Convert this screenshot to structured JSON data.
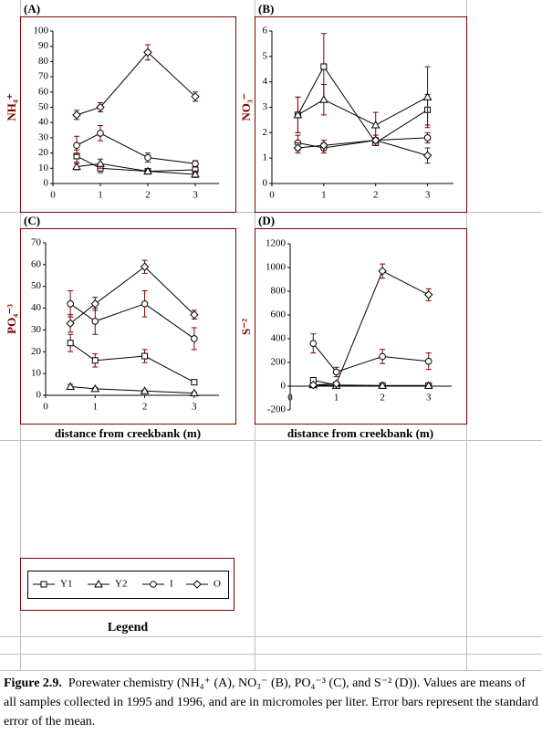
{
  "chart_data": [
    {
      "type": "line",
      "title": "(A)",
      "y_label": "NH₄⁺",
      "x": [
        0.5,
        1,
        2,
        3
      ],
      "xlim": [
        0,
        3.5
      ],
      "xticks": [
        0,
        1,
        2,
        3
      ],
      "ylim": [
        0,
        100
      ],
      "yticks": [
        0,
        10,
        20,
        30,
        40,
        50,
        60,
        70,
        80,
        90,
        100
      ],
      "grid": false,
      "error_color": "#800000",
      "series": [
        {
          "name": "Y1",
          "marker": "square",
          "color": "#000000",
          "values": [
            18,
            10,
            8,
            9
          ],
          "errors": [
            4,
            3,
            1,
            2
          ]
        },
        {
          "name": "Y2",
          "marker": "triangle",
          "color": "#000000",
          "values": [
            11,
            13,
            8,
            6
          ],
          "errors": [
            2,
            3,
            1,
            2
          ]
        },
        {
          "name": "I",
          "marker": "circle",
          "color": "#000000",
          "values": [
            25,
            33,
            17,
            13
          ],
          "errors": [
            6,
            5,
            3,
            2
          ]
        },
        {
          "name": "O",
          "marker": "diamond",
          "color": "#000000",
          "values": [
            45,
            50,
            86,
            57
          ],
          "errors": [
            3,
            3,
            5,
            3
          ]
        }
      ]
    },
    {
      "type": "line",
      "title": "(B)",
      "y_label": "NO₃⁻",
      "x": [
        0.5,
        1,
        2,
        3
      ],
      "xlim": [
        0,
        3.5
      ],
      "xticks": [
        0,
        1,
        2,
        3
      ],
      "ylim": [
        0,
        6
      ],
      "yticks": [
        0,
        1,
        2,
        3,
        4,
        5,
        6
      ],
      "grid": false,
      "error_color": "#800000",
      "series": [
        {
          "name": "Y1",
          "marker": "square",
          "color": "#000000",
          "values": [
            2.7,
            4.6,
            1.6,
            2.9
          ],
          "errors": [
            0.7,
            1.3,
            0.1,
            0.6
          ]
        },
        {
          "name": "Y2",
          "marker": "triangle",
          "color": "#000000",
          "values": [
            2.7,
            3.3,
            2.3,
            3.4
          ],
          "errors": [
            0.7,
            0.6,
            0.5,
            1.2
          ]
        },
        {
          "name": "I",
          "marker": "circle",
          "color": "#000000",
          "values": [
            1.6,
            1.4,
            1.7,
            1.8
          ],
          "errors": [
            0.3,
            0.2,
            0.1,
            0.2
          ]
        },
        {
          "name": "O",
          "marker": "diamond",
          "color": "#000000",
          "values": [
            1.4,
            1.5,
            1.7,
            1.1
          ],
          "errors": [
            0.2,
            0.2,
            0.2,
            0.3
          ]
        }
      ]
    },
    {
      "type": "line",
      "title": "(C)",
      "y_label": "PO₄⁻³",
      "x_label": "distance from creekbank (m)",
      "x": [
        0.5,
        1,
        2,
        3
      ],
      "xlim": [
        0,
        3.5
      ],
      "xticks": [
        0,
        1,
        2,
        3
      ],
      "ylim": [
        0,
        70
      ],
      "yticks": [
        0,
        10,
        20,
        30,
        40,
        50,
        60,
        70
      ],
      "grid": false,
      "error_color": "#800000",
      "series": [
        {
          "name": "Y1",
          "marker": "square",
          "color": "#000000",
          "values": [
            24,
            16,
            18,
            6
          ],
          "errors": [
            4,
            3,
            3,
            1
          ]
        },
        {
          "name": "Y2",
          "marker": "triangle",
          "color": "#000000",
          "values": [
            4,
            3,
            2,
            1
          ],
          "errors": [
            1,
            0.5,
            0.5,
            0.5
          ]
        },
        {
          "name": "I",
          "marker": "circle",
          "color": "#000000",
          "values": [
            42,
            34,
            42,
            26
          ],
          "errors": [
            6,
            6,
            6,
            5
          ]
        },
        {
          "name": "O",
          "marker": "diamond",
          "color": "#000000",
          "values": [
            33,
            42,
            59,
            37
          ],
          "errors": [
            4,
            3,
            3,
            2
          ]
        }
      ]
    },
    {
      "type": "line",
      "title": "(D)",
      "y_label": "S⁻²",
      "x_label": "distance from creekbank (m)",
      "x": [
        0.5,
        1,
        2,
        3
      ],
      "xlim": [
        0,
        3.5
      ],
      "xticks": [
        0,
        1,
        2,
        3
      ],
      "ylim": [
        -200,
        1200
      ],
      "yticks": [
        -200,
        0,
        200,
        400,
        600,
        800,
        1000,
        1200
      ],
      "grid": false,
      "error_color": "#800000",
      "series": [
        {
          "name": "Y1",
          "marker": "square",
          "color": "#000000",
          "values": [
            50,
            10,
            5,
            5
          ],
          "errors": [
            10,
            5,
            5,
            5
          ]
        },
        {
          "name": "Y2",
          "marker": "triangle",
          "color": "#000000",
          "values": [
            10,
            5,
            5,
            5
          ],
          "errors": [
            5,
            5,
            5,
            5
          ]
        },
        {
          "name": "I",
          "marker": "circle",
          "color": "#000000",
          "values": [
            360,
            120,
            250,
            210
          ],
          "errors": [
            80,
            40,
            60,
            70
          ]
        },
        {
          "name": "O",
          "marker": "diamond",
          "color": "#000000",
          "values": [
            10,
            20,
            970,
            770
          ],
          "errors": [
            5,
            5,
            60,
            50
          ]
        }
      ]
    }
  ],
  "legend": {
    "title": "Legend"
  },
  "caption": {
    "label": "Figure 2.9.",
    "text": "Porewater chemistry (NH₄⁺ (A), NO₃⁻ (B), PO₄⁻³ (C), and S⁻² (D)).  Values are means of all samples collected in 1995 and 1996, and are in micromoles per liter.  Error bars represent the standard error of the mean."
  }
}
